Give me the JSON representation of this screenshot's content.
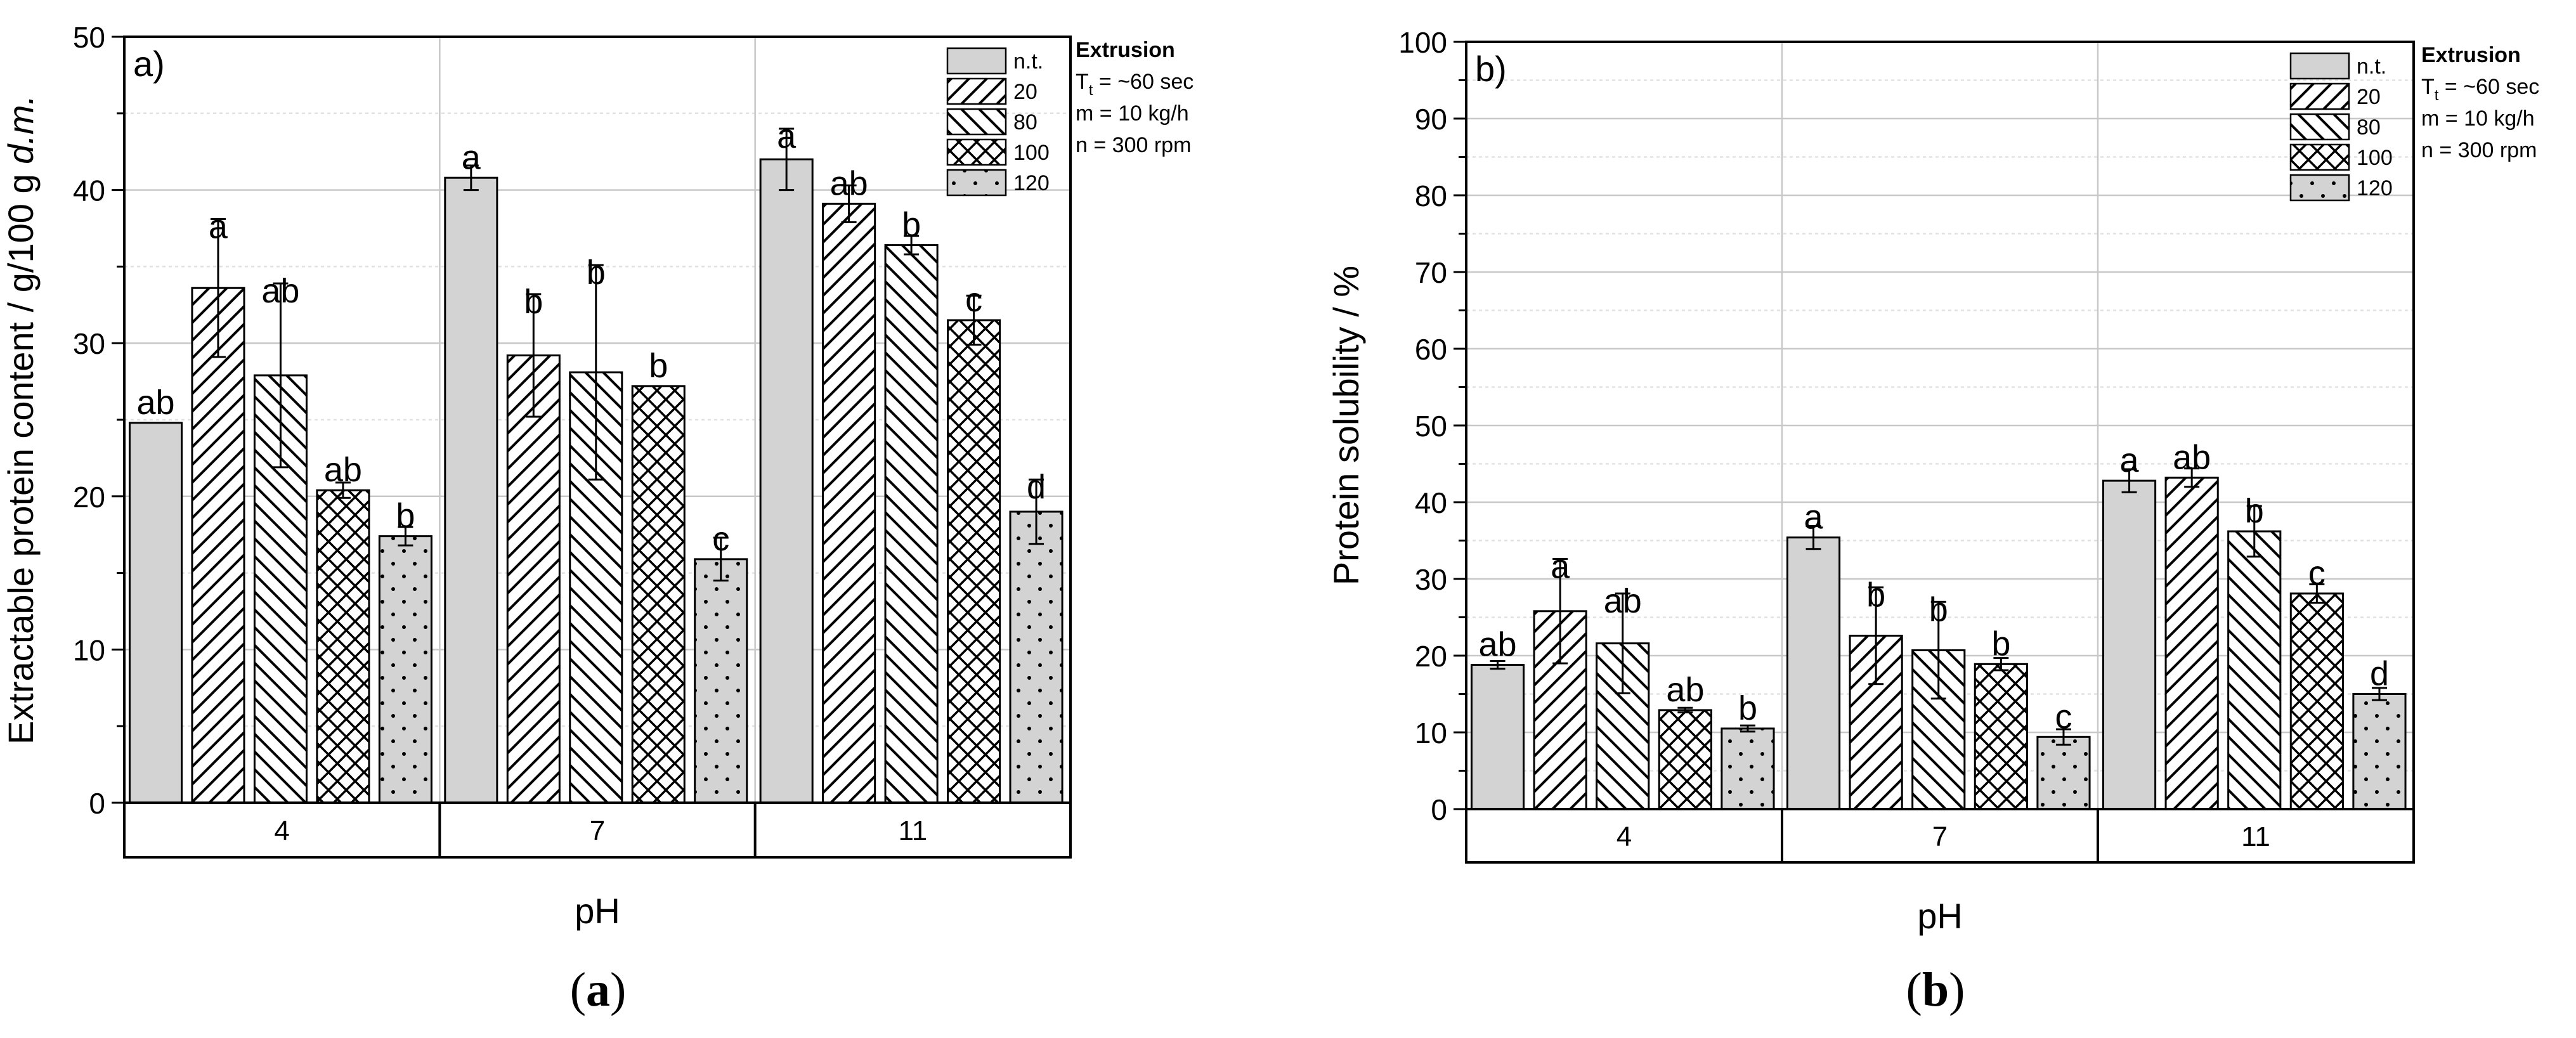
{
  "chart_data": [
    {
      "type": "bar",
      "panel_label": "a)",
      "caption_letter": "a",
      "xlabel": "pH",
      "ylabel": "Extractable protein content / g/100 g ",
      "ylabel_italic": "d.m.",
      "ylim": [
        0,
        50
      ],
      "yticks": [
        0,
        10,
        20,
        30,
        40,
        50
      ],
      "grid": true,
      "legend_placement": "top-right",
      "categories": [
        "4",
        "7",
        "11"
      ],
      "series": [
        {
          "name": "n.t.",
          "pattern": "solid",
          "values": [
            24.8,
            40.8,
            42.0
          ],
          "errors": [
            0,
            0.8,
            2.0
          ],
          "letters": [
            "ab",
            "a",
            "a"
          ]
        },
        {
          "name": "20",
          "pattern": "hatch-fwd",
          "values": [
            33.6,
            29.2,
            39.1
          ],
          "errors": [
            4.5,
            4.0,
            1.2
          ],
          "letters": [
            "a",
            "b",
            "ab"
          ]
        },
        {
          "name": "80",
          "pattern": "hatch-back",
          "values": [
            27.9,
            28.1,
            36.4
          ],
          "errors": [
            6.0,
            7.0,
            0.6
          ],
          "letters": [
            "ab",
            "b",
            "b"
          ]
        },
        {
          "name": "100",
          "pattern": "crosshatch",
          "values": [
            20.4,
            27.2,
            31.5
          ],
          "errors": [
            0.5,
            0,
            1.6
          ],
          "letters": [
            "ab",
            "b",
            "c"
          ]
        },
        {
          "name": "120",
          "pattern": "dots",
          "values": [
            17.4,
            15.9,
            19.0
          ],
          "errors": [
            0.6,
            1.4,
            2.1
          ],
          "letters": [
            "b",
            "c",
            "d"
          ]
        }
      ],
      "legend_title": "Extrusion",
      "legend_params": [
        {
          "main": "T",
          "sub": "t",
          "rest": " = ~60 sec"
        },
        {
          "main": "m = 10 kg/h",
          "sub": "",
          "rest": ""
        },
        {
          "main": "n  = 300 rpm",
          "sub": "",
          "rest": ""
        }
      ]
    },
    {
      "type": "bar",
      "panel_label": "b)",
      "caption_letter": "b",
      "xlabel": "pH",
      "ylabel": "Protein solubility / %",
      "ylabel_italic": "",
      "ylim": [
        0,
        100
      ],
      "yticks": [
        0,
        10,
        20,
        30,
        40,
        50,
        60,
        70,
        80,
        90,
        100
      ],
      "grid": true,
      "legend_placement": "top-right",
      "categories": [
        "4",
        "7",
        "11"
      ],
      "series": [
        {
          "name": "n.t.",
          "pattern": "solid",
          "values": [
            18.8,
            35.4,
            42.8
          ],
          "errors": [
            0.5,
            1.5,
            1.5
          ],
          "letters": [
            "ab",
            "a",
            "a"
          ]
        },
        {
          "name": "20",
          "pattern": "hatch-fwd",
          "values": [
            25.8,
            22.6,
            43.2
          ],
          "errors": [
            6.8,
            6.3,
            1.2
          ],
          "letters": [
            "a",
            "b",
            "ab"
          ]
        },
        {
          "name": "80",
          "pattern": "hatch-back",
          "values": [
            21.6,
            20.7,
            36.2
          ],
          "errors": [
            6.5,
            6.3,
            3.3
          ],
          "letters": [
            "ab",
            "b",
            "b"
          ]
        },
        {
          "name": "100",
          "pattern": "crosshatch",
          "values": [
            12.9,
            18.9,
            28.1
          ],
          "errors": [
            0.3,
            0.8,
            1.2
          ],
          "letters": [
            "ab",
            "b",
            "c"
          ]
        },
        {
          "name": "120",
          "pattern": "dots",
          "values": [
            10.5,
            9.4,
            15.0
          ],
          "errors": [
            0.4,
            1.0,
            0.8
          ],
          "letters": [
            "b",
            "c",
            "d"
          ]
        }
      ],
      "legend_title": "Extrusion",
      "legend_params": [
        {
          "main": "T",
          "sub": "t",
          "rest": " = ~60 sec"
        },
        {
          "main": "m = 10 kg/h",
          "sub": "",
          "rest": ""
        },
        {
          "main": "n  = 300 rpm",
          "sub": "",
          "rest": ""
        }
      ]
    }
  ]
}
